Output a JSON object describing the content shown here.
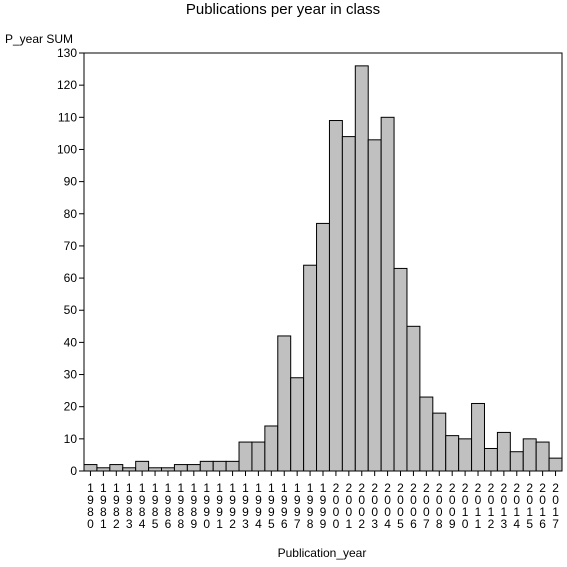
{
  "chart_data": {
    "type": "bar",
    "title": "Publications per year in class",
    "xlabel": "Publication_year",
    "ylabel": "P_year SUM",
    "ylim": [
      0,
      130
    ],
    "yticks": [
      0,
      10,
      20,
      30,
      40,
      50,
      60,
      70,
      80,
      90,
      100,
      110,
      120,
      130
    ],
    "grid": false,
    "categories": [
      "1980",
      "1981",
      "1982",
      "1983",
      "1984",
      "1985",
      "1986",
      "1988",
      "1989",
      "1990",
      "1991",
      "1992",
      "1993",
      "1994",
      "1995",
      "1996",
      "1997",
      "1998",
      "1999",
      "2000",
      "2001",
      "2002",
      "2003",
      "2004",
      "2005",
      "2006",
      "2007",
      "2008",
      "2009",
      "2010",
      "2011",
      "2012",
      "2013",
      "2014",
      "2015",
      "2016",
      "2017"
    ],
    "values": [
      2,
      1,
      2,
      1,
      3,
      1,
      1,
      2,
      2,
      3,
      3,
      3,
      9,
      9,
      14,
      42,
      29,
      64,
      77,
      109,
      104,
      126,
      103,
      110,
      63,
      45,
      23,
      18,
      11,
      10,
      21,
      7,
      12,
      6,
      10,
      9,
      4
    ],
    "colors": {
      "bar_fill": "#c0c0c0",
      "bar_stroke": "#000000",
      "axis": "#000000"
    }
  }
}
